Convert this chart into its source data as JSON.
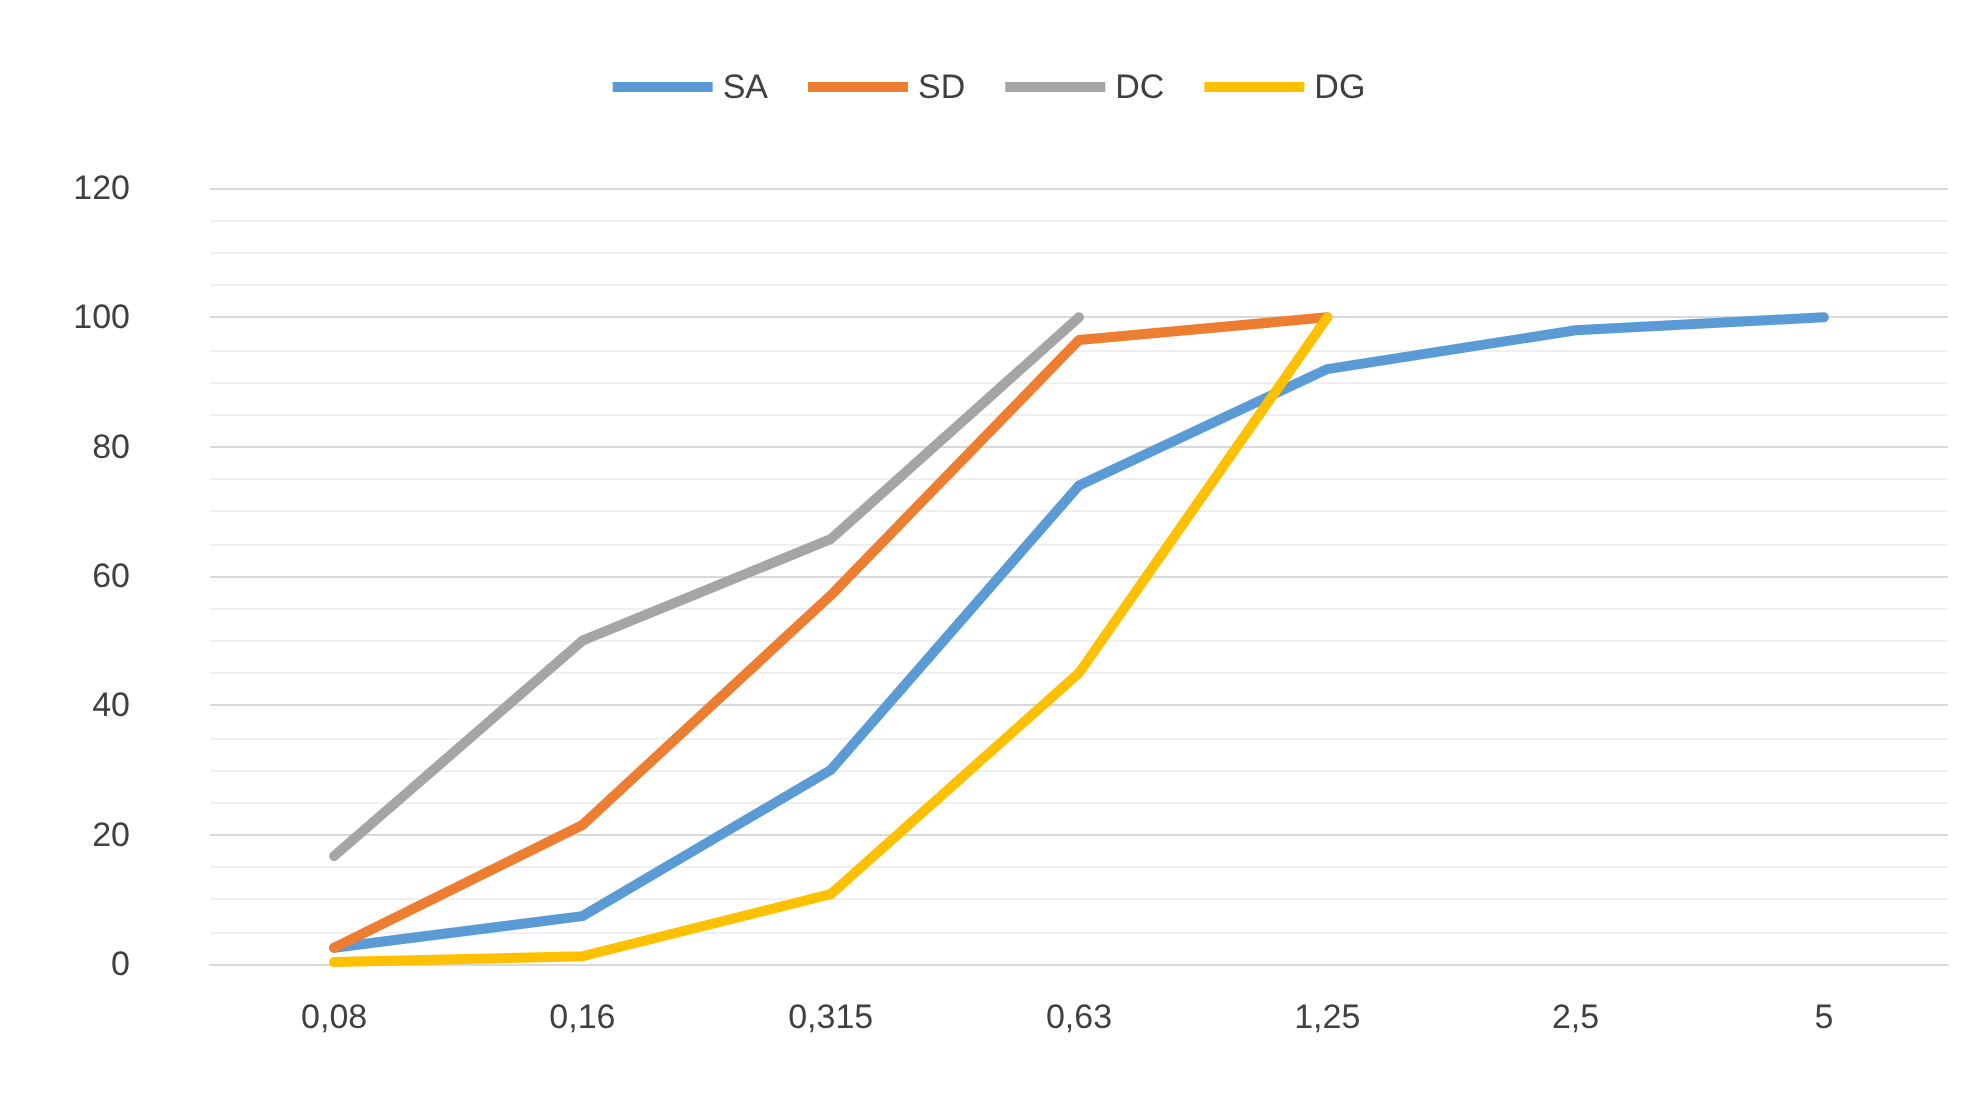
{
  "chart_data": {
    "type": "line",
    "categories": [
      "0,08",
      "0,16",
      "0,315",
      "0,63",
      "1,25",
      "2,5",
      "5"
    ],
    "series": [
      {
        "name": "SA",
        "color": "#5b9bd5",
        "values": [
          2.5,
          7.4,
          30,
          74,
          92,
          98,
          100
        ]
      },
      {
        "name": "SD",
        "color": "#ed7d31",
        "values": [
          2.5,
          21.5,
          57,
          96.5,
          100,
          null,
          null
        ]
      },
      {
        "name": "DC",
        "color": "#a5a5a5",
        "values": [
          16.7,
          50,
          65.7,
          100,
          null,
          null,
          null
        ]
      },
      {
        "name": "DG",
        "color": "#ffc000",
        "values": [
          0.3,
          1.2,
          10.8,
          45,
          100,
          null,
          null
        ]
      }
    ],
    "ylim": [
      0,
      120
    ],
    "yticks": [
      0,
      20,
      40,
      60,
      80,
      100,
      120
    ],
    "grid": "y",
    "legend": "top",
    "marker": "none",
    "line_style": "solid"
  }
}
